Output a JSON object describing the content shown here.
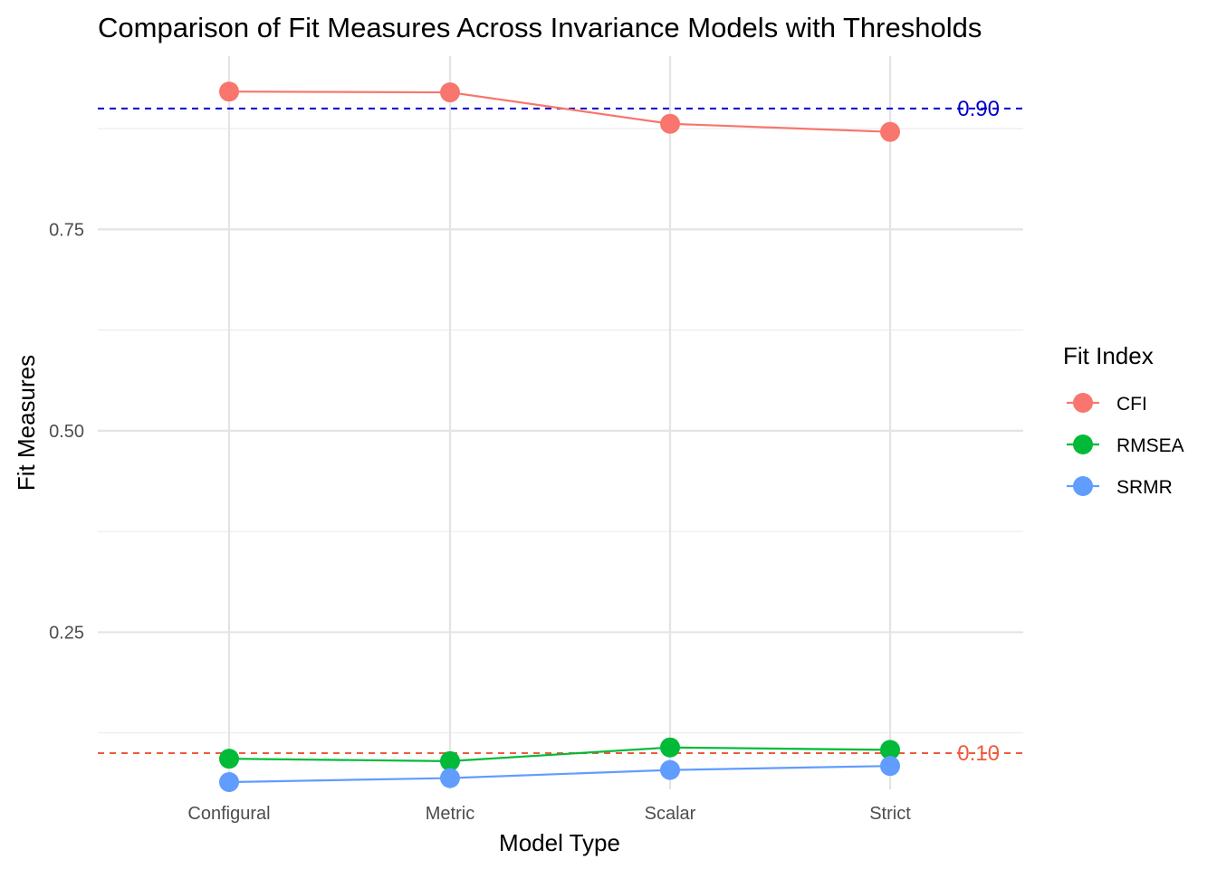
{
  "chart_data": {
    "type": "line",
    "title": "Comparison of Fit Measures Across Invariance Models with Thresholds",
    "xlabel": "Model Type",
    "ylabel": "Fit Measures",
    "categories": [
      "Configural",
      "Metric",
      "Scalar",
      "Strict"
    ],
    "ylim": [
      0.055,
      0.965
    ],
    "yticks": [
      0.25,
      0.5,
      0.75
    ],
    "ytick_labels": [
      "0.25",
      "0.50",
      "0.75"
    ],
    "grid": true,
    "legend": {
      "title": "Fit Index",
      "position": "right"
    },
    "series": [
      {
        "name": "CFI",
        "color": "#F8766D",
        "values": [
          0.921,
          0.92,
          0.881,
          0.871
        ]
      },
      {
        "name": "RMSEA",
        "color": "#00BA38",
        "values": [
          0.093,
          0.09,
          0.107,
          0.104
        ]
      },
      {
        "name": "SRMR",
        "color": "#619CFF",
        "values": [
          0.064,
          0.069,
          0.079,
          0.084
        ]
      }
    ],
    "thresholds": [
      {
        "value": 0.9,
        "label": "0.90",
        "color": "#0000CD"
      },
      {
        "value": 0.1,
        "label": "0.10",
        "color": "#F05A3C"
      }
    ]
  }
}
